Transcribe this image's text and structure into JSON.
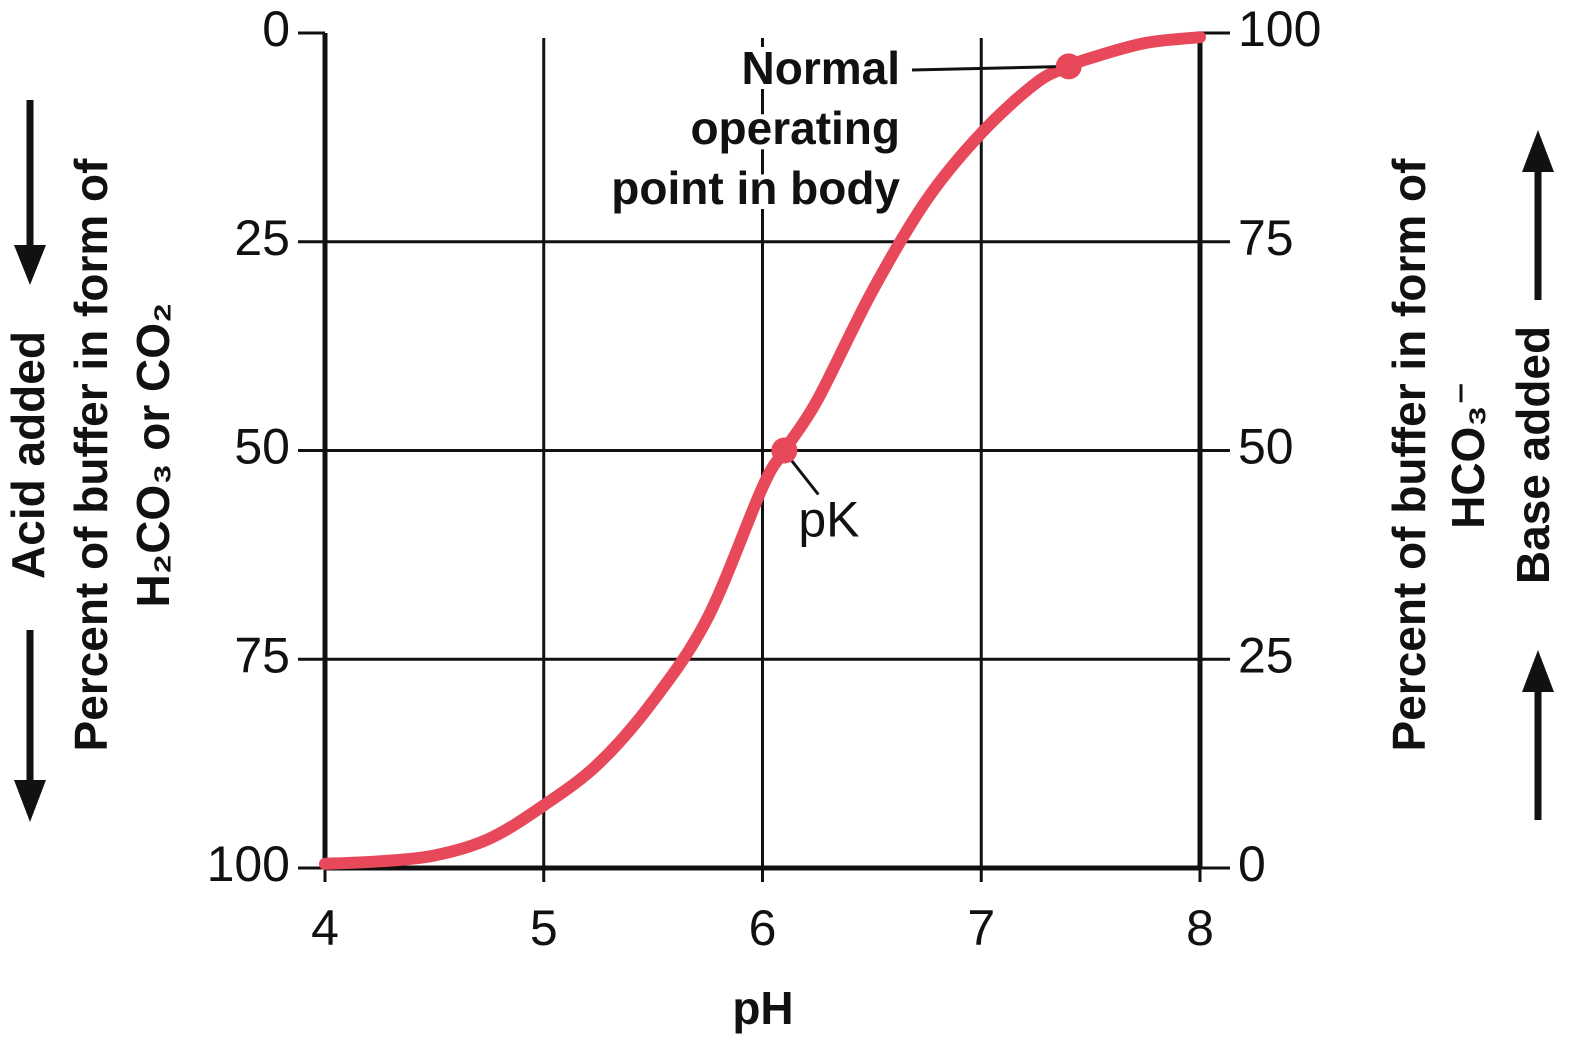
{
  "chart_data": {
    "type": "line",
    "xlabel": "pH",
    "ylabel": [
      "Percent of buffer in form of",
      "H₂CO₃ or CO₂"
    ],
    "y2label": [
      "Percent of buffer in form of",
      "HCO₃⁻"
    ],
    "left_note": "Acid added",
    "right_note": "Base added",
    "x": [
      4,
      4.25,
      4.5,
      4.75,
      5,
      5.25,
      5.5,
      5.75,
      6,
      6.1,
      6.25,
      6.5,
      6.75,
      7,
      7.25,
      7.4,
      7.5,
      7.75,
      8
    ],
    "series": [
      {
        "color": "#e8495a",
        "axis": "y2",
        "values": [
          0.5,
          0.8,
          1.5,
          3.5,
          7.5,
          12.5,
          20,
          30,
          45.6,
          50,
          56,
          69,
          80,
          88,
          94,
          96,
          97,
          98.8,
          99.5
        ]
      }
    ],
    "xlim": [
      4,
      8
    ],
    "xticks": [
      4,
      5,
      6,
      7,
      8
    ],
    "ylim": [
      100,
      0
    ],
    "yticks": [
      0,
      25,
      50,
      75,
      100
    ],
    "y2lim": [
      0,
      100
    ],
    "y2ticks": [
      0,
      25,
      50,
      75,
      100
    ],
    "grid": true,
    "annotations": [
      {
        "text": [
          "Normal",
          "operating",
          "point in body"
        ],
        "x": 7.4,
        "y": 96
      },
      {
        "text": [
          "pK"
        ],
        "x": 6.1,
        "y": 50
      }
    ]
  }
}
